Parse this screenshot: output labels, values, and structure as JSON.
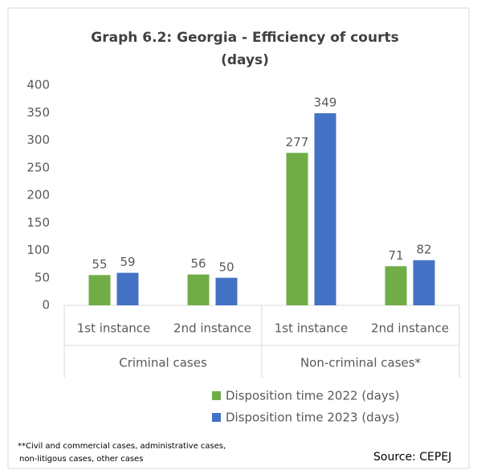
{
  "chart_data": {
    "type": "bar",
    "title": "Graph 6.2: Georgia - Efficiency of courts",
    "subtitle": "(days)",
    "groups": [
      "Criminal cases",
      "Non-criminal cases*"
    ],
    "categories": [
      "1st instance",
      "2nd instance",
      "1st instance",
      "2nd instance"
    ],
    "series": [
      {
        "name": "Disposition time 2022 (days)",
        "color": "#70ad47",
        "values": [
          55,
          56,
          277,
          71
        ]
      },
      {
        "name": "Disposition time 2023 (days)",
        "color": "#4472c4",
        "values": [
          59,
          50,
          349,
          82
        ]
      }
    ],
    "ylim": [
      0,
      400
    ],
    "yticks": [
      0,
      50,
      100,
      150,
      200,
      250,
      300,
      350,
      400
    ],
    "grid": false,
    "footnote": [
      "**Civil and commercial cases, administrative cases,",
      "non-litigous cases, other cases"
    ],
    "source": "Source: CEPEJ"
  }
}
